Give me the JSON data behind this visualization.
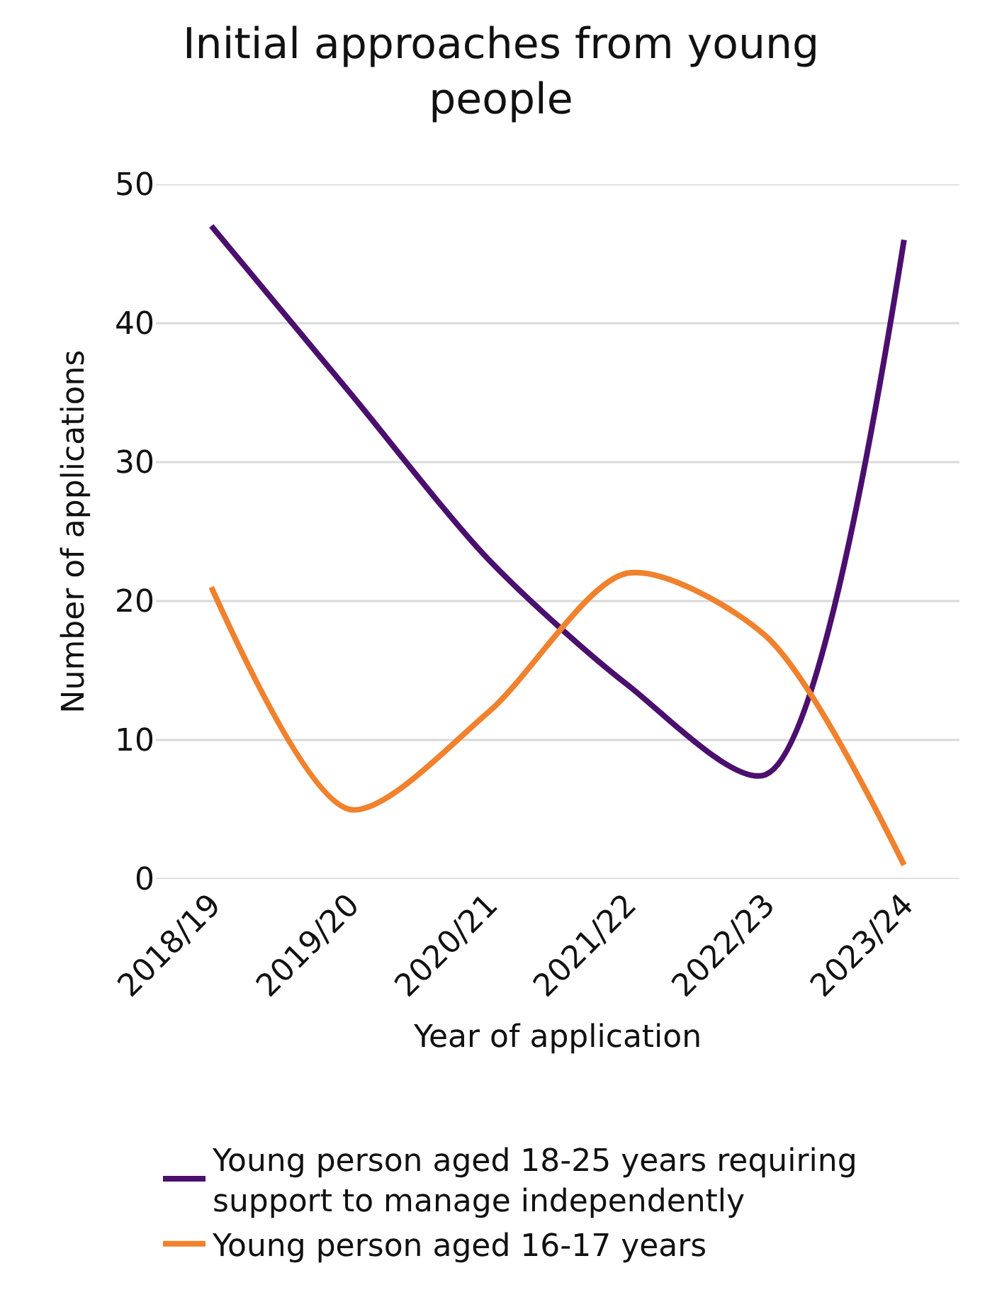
{
  "chart_data": {
    "type": "line",
    "title": "Initial approaches from young people",
    "xlabel": "Year of application",
    "ylabel": "Number of applications",
    "categories": [
      "2018/19",
      "2019/20",
      "2020/21",
      "2021/22",
      "2022/23",
      "2023/24"
    ],
    "series": [
      {
        "name": "Young person aged 18-25 years requiring support to manage independently",
        "color": "#4b0f6e",
        "values": [
          47,
          35,
          23,
          14,
          7.5,
          46
        ]
      },
      {
        "name": "Young person aged 16-17 years",
        "color": "#f0812d",
        "values": [
          21,
          5,
          12,
          22,
          17.5,
          1
        ]
      }
    ],
    "ylim": [
      0,
      50
    ],
    "yticks": [
      0,
      10,
      20,
      30,
      40,
      50
    ],
    "grid": "y",
    "legend": "bottom",
    "marker": "none",
    "line_style": "solid"
  }
}
